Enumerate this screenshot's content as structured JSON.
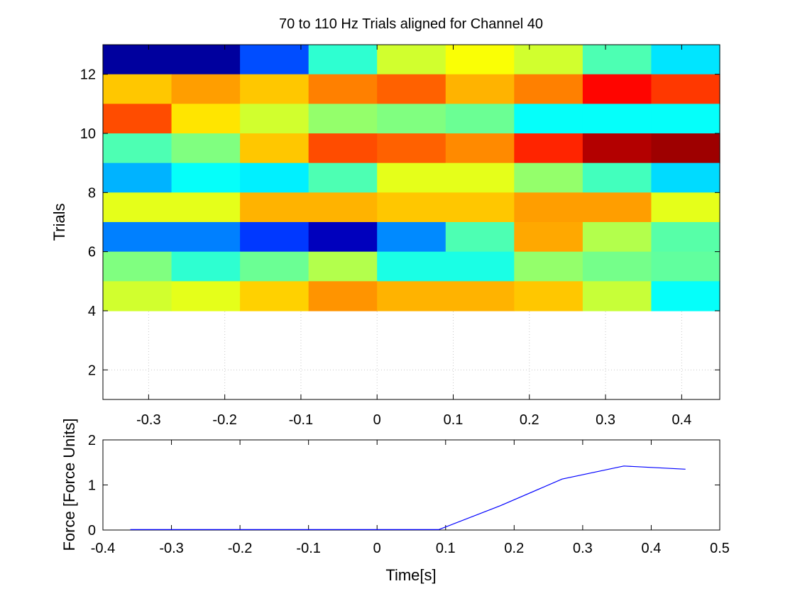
{
  "chart_data": [
    {
      "type": "heatmap",
      "title": "70 to 110 Hz Trials aligned for Channel 40",
      "ylabel": "Trials",
      "xlim": [
        -0.36,
        0.45
      ],
      "ylim": [
        1,
        13
      ],
      "x_ticks": [
        -0.3,
        -0.2,
        -0.1,
        0,
        0.1,
        0.2,
        0.3,
        0.4
      ],
      "x_tick_labels": [
        "-0.3",
        "-0.2",
        "-0.1",
        "0",
        "0.1",
        "0.2",
        "0.3",
        "0.4"
      ],
      "y_ticks": [
        2,
        4,
        6,
        8,
        10,
        12
      ],
      "y_tick_labels": [
        "2",
        "4",
        "6",
        "8",
        "10",
        "12"
      ],
      "grid": true,
      "colormap": "jet",
      "x_edges": [
        -0.36,
        -0.27,
        -0.18,
        -0.09,
        0,
        0.09,
        0.18,
        0.27,
        0.36,
        0.45
      ],
      "rows": [
        {
          "trial_range": [
            12,
            13
          ],
          "values": [
            0.03,
            0.03,
            0.2,
            0.42,
            0.58,
            0.62,
            0.58,
            0.45,
            0.35
          ]
        },
        {
          "trial_range": [
            11,
            12
          ],
          "values": [
            0.68,
            0.72,
            0.68,
            0.75,
            0.78,
            0.7,
            0.75,
            0.87,
            0.82
          ]
        },
        {
          "trial_range": [
            10,
            11
          ],
          "values": [
            0.8,
            0.65,
            0.58,
            0.52,
            0.5,
            0.48,
            0.38,
            0.38,
            0.38
          ]
        },
        {
          "trial_range": [
            9,
            10
          ],
          "values": [
            0.45,
            0.5,
            0.68,
            0.8,
            0.78,
            0.74,
            0.84,
            0.95,
            0.97
          ]
        },
        {
          "trial_range": [
            8,
            9
          ],
          "values": [
            0.3,
            0.38,
            0.36,
            0.45,
            0.6,
            0.6,
            0.52,
            0.44,
            0.34
          ]
        },
        {
          "trial_range": [
            7,
            8
          ],
          "values": [
            0.6,
            0.6,
            0.7,
            0.7,
            0.68,
            0.68,
            0.72,
            0.72,
            0.6
          ]
        },
        {
          "trial_range": [
            6,
            7
          ],
          "values": [
            0.25,
            0.25,
            0.18,
            0.06,
            0.26,
            0.45,
            0.71,
            0.55,
            0.46
          ]
        },
        {
          "trial_range": [
            5,
            6
          ],
          "values": [
            0.5,
            0.42,
            0.48,
            0.55,
            0.4,
            0.4,
            0.52,
            0.49,
            0.47
          ]
        },
        {
          "trial_range": [
            4,
            5
          ],
          "values": [
            0.58,
            0.6,
            0.67,
            0.73,
            0.7,
            0.7,
            0.68,
            0.57,
            0.38
          ]
        }
      ]
    },
    {
      "type": "line",
      "xlabel": "Time[s]",
      "ylabel": "Force [Force Units]",
      "xlim": [
        -0.4,
        0.5
      ],
      "ylim": [
        0,
        2
      ],
      "x_ticks": [
        -0.4,
        -0.3,
        -0.2,
        -0.1,
        0,
        0.1,
        0.2,
        0.3,
        0.4,
        0.5
      ],
      "x_tick_labels": [
        "-0.4",
        "-0.3",
        "-0.2",
        "-0.1",
        "0",
        "0.1",
        "0.2",
        "0.3",
        "0.4",
        "0.5"
      ],
      "y_ticks": [
        0,
        1,
        2
      ],
      "y_tick_labels": [
        "0",
        "1",
        "2"
      ],
      "grid": false,
      "series": [
        {
          "color": "#0000ff",
          "x": [
            -0.36,
            -0.27,
            -0.18,
            -0.09,
            0,
            0.09,
            0.18,
            0.27,
            0.36,
            0.45
          ],
          "values": [
            0.01,
            0.01,
            0.01,
            0.01,
            0.01,
            0.01,
            0.54,
            1.13,
            1.42,
            1.35
          ]
        }
      ]
    }
  ]
}
